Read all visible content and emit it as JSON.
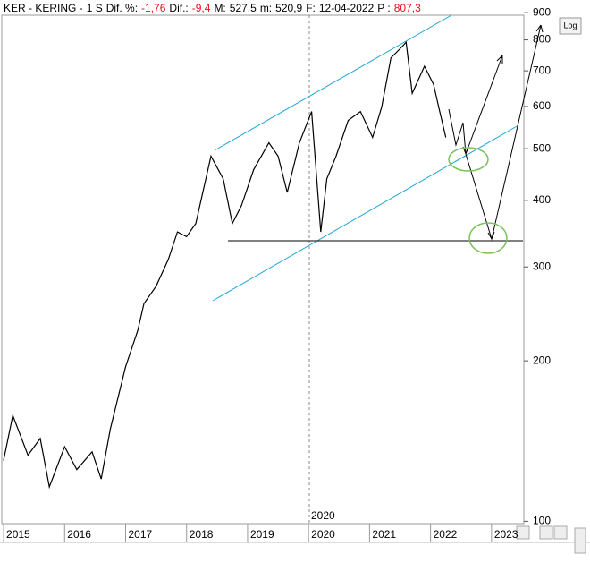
{
  "header": {
    "ticker": "KER - KERING -",
    "period": "1 S",
    "fields": [
      {
        "label": "Dif. %:",
        "value": "-1,76"
      },
      {
        "label": "Dif.:",
        "value": "-9,4"
      },
      {
        "label": "M:",
        "value": "527,5"
      },
      {
        "label": "m:",
        "value": "520,9"
      },
      {
        "label": "F:",
        "value": "12-04-2022"
      },
      {
        "label": "P :",
        "value": "807,3"
      }
    ]
  },
  "log_button": "Log",
  "chart_data": {
    "type": "line",
    "log_scale": true,
    "color": "#000000",
    "cursor_label": "2020",
    "x": [
      2015.0,
      2015.15,
      2015.4,
      2015.6,
      2015.75,
      2016.0,
      2016.2,
      2016.45,
      2016.6,
      2016.75,
      2017.0,
      2017.2,
      2017.3,
      2017.5,
      2017.7,
      2017.85,
      2018.0,
      2018.15,
      2018.3,
      2018.4,
      2018.6,
      2018.75,
      2018.9,
      2019.1,
      2019.35,
      2019.5,
      2019.65,
      2019.85,
      2020.05,
      2020.2,
      2020.3,
      2020.45,
      2020.65,
      2020.85,
      2021.05,
      2021.2,
      2021.35,
      2021.5,
      2021.6,
      2021.7,
      2021.9,
      2022.05,
      2022.15,
      2022.25
    ],
    "values": [
      130,
      158,
      133,
      143,
      116,
      138,
      125,
      135,
      120,
      149,
      195,
      228,
      256,
      276,
      310,
      349,
      342,
      362,
      431,
      484,
      439,
      362,
      391,
      457,
      513,
      484,
      414,
      513,
      587,
      349,
      439,
      484,
      565,
      587,
      525,
      599,
      740,
      770,
      792,
      635,
      714,
      660,
      587,
      525
    ],
    "xlim": [
      2014.97,
      2023.53
    ],
    "xticks": [
      2015,
      2016,
      2017,
      2018,
      2019,
      2020,
      2021,
      2022,
      2023
    ],
    "ylim": [
      99,
      890
    ],
    "yticks": [
      100,
      200,
      300,
      400,
      500,
      600,
      700,
      800,
      900
    ]
  }
}
